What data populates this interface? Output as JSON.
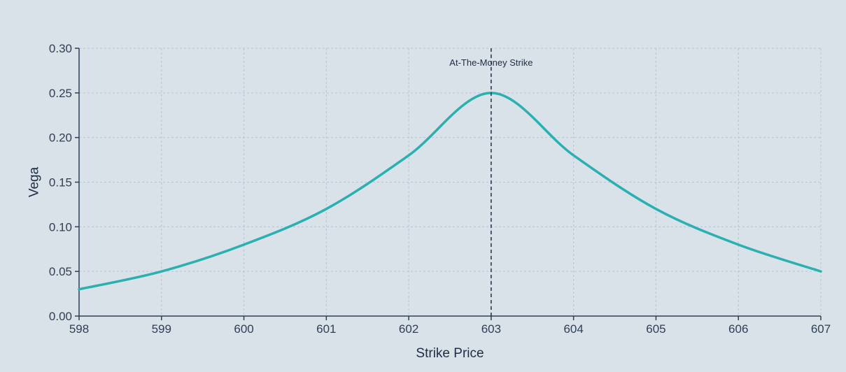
{
  "chart_data": {
    "type": "line",
    "title": "",
    "xlabel": "Strike Price",
    "ylabel": "Vega",
    "xlim": [
      598,
      607
    ],
    "ylim": [
      0,
      0.3
    ],
    "x_ticks": [
      598,
      599,
      600,
      601,
      602,
      603,
      604,
      605,
      606,
      607
    ],
    "x_tick_labels": [
      "598",
      "599",
      "600",
      "601",
      "602",
      "603",
      "604",
      "605",
      "606",
      "607"
    ],
    "y_ticks": [
      0,
      0.05,
      0.1,
      0.15,
      0.2,
      0.25,
      0.3
    ],
    "y_tick_labels": [
      "0.00",
      "0.05",
      "0.10",
      "0.15",
      "0.20",
      "0.25",
      "0.30"
    ],
    "grid": true,
    "series": [
      {
        "color": "#2ab0b0",
        "x": [
          598,
          599,
          600,
          601,
          602,
          603,
          604,
          605,
          606,
          607
        ],
        "y": [
          0.03,
          0.05,
          0.08,
          0.12,
          0.18,
          0.25,
          0.18,
          0.12,
          0.08,
          0.05
        ]
      }
    ],
    "annotations": [
      {
        "type": "vline",
        "x": 603,
        "label": "At-The-Money Strike",
        "color": "#1f2d44"
      }
    ],
    "colors": {
      "background": "#d9e1e9",
      "grid": "#b7c2db",
      "axis": "#2f3f55"
    }
  }
}
